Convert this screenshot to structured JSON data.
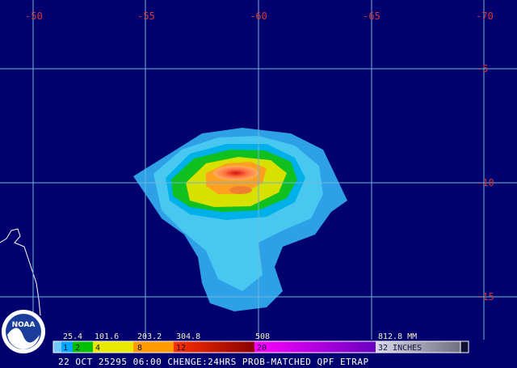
{
  "map": {
    "lon_labels": [
      "-50",
      "-55",
      "-60",
      "-65",
      "-70"
    ],
    "lat_labels": [
      "-5",
      "-10",
      "-15"
    ]
  },
  "logo": {
    "text": "NOAA"
  },
  "legend": {
    "mm_labels": [
      "25.4",
      "101.6",
      "203.2",
      "304.8",
      "508",
      "812.8 MM"
    ],
    "inch_labels": [
      "1",
      "2",
      "4",
      "8",
      "12",
      "20",
      "32 INCHES"
    ]
  },
  "caption": "22 OCT 25295 06:00 CHENGE:24HRS PROB-MATCHED QPF ETRAP"
}
